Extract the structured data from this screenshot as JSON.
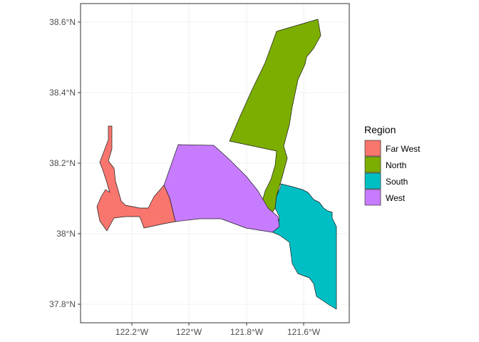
{
  "map": {
    "x_ticks": [
      "122.2°W",
      "122°W",
      "121.8°W",
      "121.6°W"
    ],
    "y_ticks": [
      "38.6°N",
      "38.4°N",
      "38.2°N",
      "38°N",
      "37.8°N"
    ],
    "colors": {
      "panel_border": "#333333",
      "grid": "#ebebeb",
      "region_outline": "#1a1a1a"
    },
    "legend": {
      "title": "Region",
      "items": [
        {
          "label": "Far West",
          "color": "#F8766D"
        },
        {
          "label": "North",
          "color": "#7CAE00"
        },
        {
          "label": "South",
          "color": "#00BFC4"
        },
        {
          "label": "West",
          "color": "#C77CFF"
        }
      ]
    }
  }
}
